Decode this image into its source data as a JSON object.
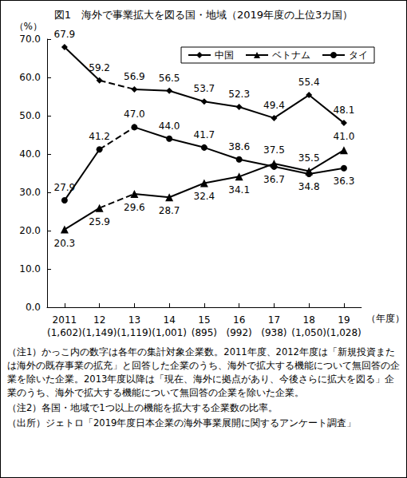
{
  "chart_data": {
    "type": "line",
    "title": "図1　海外で事業拡大を図る国・地域（2019年度の上位3カ国）",
    "y_label": "（%）",
    "x_label": "（年度）",
    "categories": [
      "2011",
      "12",
      "13",
      "14",
      "15",
      "16",
      "17",
      "18",
      "19"
    ],
    "counts": [
      "(1,602)",
      "(1,149)",
      "(1,119)",
      "(1,001)",
      "(895)",
      "(992)",
      "(938)",
      "(1,050)",
      "(1,028)"
    ],
    "dashed_segment": [
      "12",
      "13"
    ],
    "series": [
      {
        "name": "中国",
        "color": "#000000",
        "marker": "diamond",
        "line_style": "solid",
        "values": [
          67.9,
          59.2,
          56.9,
          56.5,
          53.7,
          52.3,
          49.4,
          55.4,
          48.1
        ],
        "value_labels": [
          "67.9",
          "59.2",
          "56.9",
          "56.5",
          "53.7",
          "52.3",
          "49.4",
          "55.4",
          "48.1"
        ]
      },
      {
        "name": "ベトナム",
        "color": "#000000",
        "marker": "triangle",
        "line_style": "solid",
        "values": [
          20.3,
          25.9,
          29.6,
          28.7,
          32.4,
          34.1,
          37.5,
          35.5,
          41.0
        ],
        "value_labels": [
          "20.3",
          "25.9",
          "29.6",
          "28.7",
          "32.4",
          "34.1",
          "37.5",
          "35.5",
          "41.0"
        ]
      },
      {
        "name": "タイ",
        "color": "#000000",
        "marker": "circle",
        "line_style": "solid",
        "values": [
          27.9,
          41.2,
          47.0,
          44.0,
          41.7,
          38.6,
          36.7,
          34.8,
          36.3
        ],
        "value_labels": [
          "27.9",
          "41.2",
          "47.0",
          "44.0",
          "41.7",
          "38.6",
          "36.7",
          "34.8",
          "36.3"
        ]
      }
    ],
    "ylim": [
      0,
      70
    ],
    "yticks": [
      {
        "value": 0,
        "label": "0.0"
      },
      {
        "value": 10,
        "label": "10.0"
      },
      {
        "value": 20,
        "label": "20.0"
      },
      {
        "value": 30,
        "label": "30.0"
      },
      {
        "value": 40,
        "label": "40.0"
      },
      {
        "value": 50,
        "label": "50.0"
      },
      {
        "value": 60,
        "label": "60.0"
      },
      {
        "value": 70,
        "label": "70.0"
      }
    ],
    "grid": false,
    "legend": "top-right",
    "data_labels": true,
    "notes": [
      "（注1）かっこ内の数字は各年の集計対象企業数。2011年度、2012年度は「新規投資または海外の既存事業の拡充」と回答した企業のうち、海外で拡大する機能について無回答の企業を除いた企業。2013年度以降は「現在、海外に拠点があり、今後さらに拡大を図る」企業のうち、海外で拡大する機能について無回答の企業を除いた企業。",
      "（注2）各国・地域で1つ以上の機能を拡大する企業数の比率。",
      "（出所）ジェトロ「2019年度日本企業の海外事業展開に関するアンケート調査」"
    ]
  }
}
